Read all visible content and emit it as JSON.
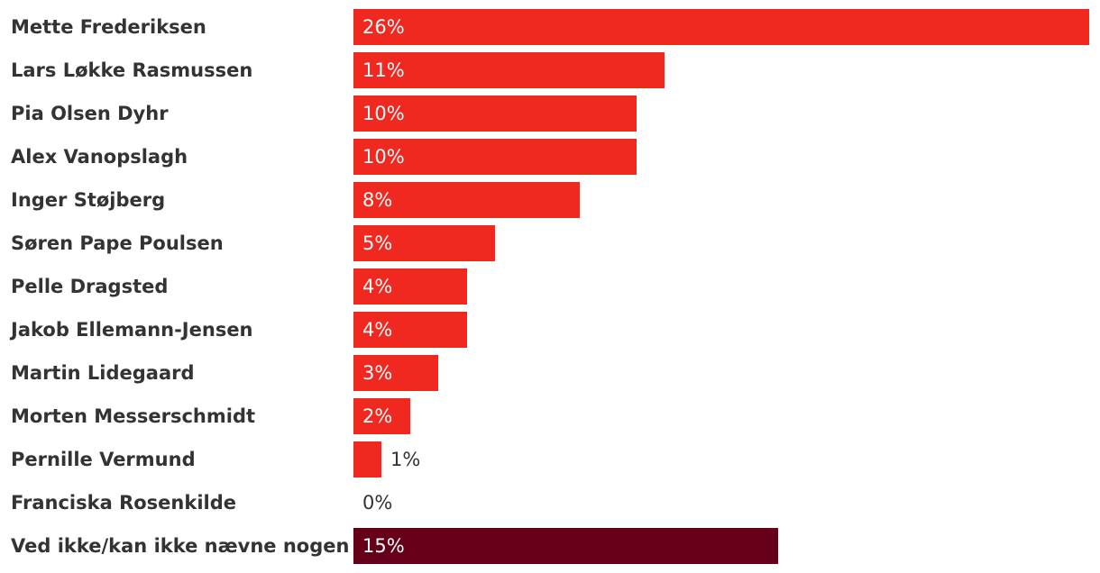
{
  "chart_data": {
    "type": "bar",
    "orientation": "horizontal",
    "categories": [
      "Mette Frederiksen",
      "Lars Løkke Rasmussen",
      "Pia Olsen Dyhr",
      "Alex Vanopslagh",
      "Inger Støjberg",
      "Søren Pape Poulsen",
      "Pelle Dragsted",
      "Jakob Ellemann-Jensen",
      "Martin Lidegaard",
      "Morten Messerschmidt",
      "Pernille Vermund",
      "Franciska Rosenkilde",
      "Ved ikke/kan ikke nævne nogen"
    ],
    "values": [
      26,
      11,
      10,
      10,
      8,
      5,
      4,
      4,
      3,
      2,
      1,
      0,
      15
    ],
    "value_labels": [
      "26%",
      "11%",
      "10%",
      "10%",
      "8%",
      "5%",
      "4%",
      "4%",
      "3%",
      "2%",
      "1%",
      "0%",
      "15%"
    ],
    "unit": "%",
    "xlim": [
      0,
      26
    ],
    "grid": false,
    "legend": "none",
    "colors": {
      "default_bar": "#f0281f",
      "highlight_bar": "#660018",
      "highlight_index": 12,
      "label_inside": "#ffffff",
      "label_outside": "#333333",
      "category_text": "#333333"
    }
  }
}
